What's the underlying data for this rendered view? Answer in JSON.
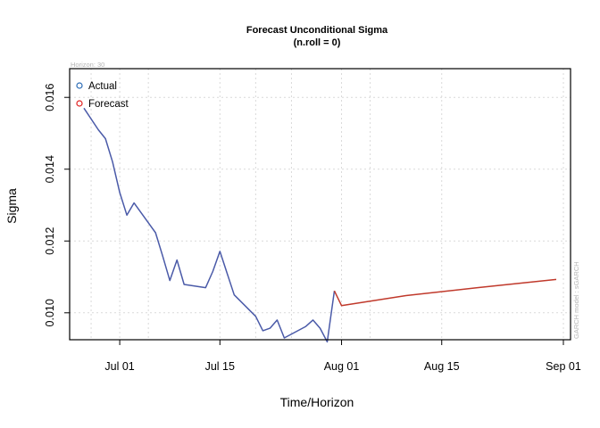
{
  "chart_data": {
    "type": "line",
    "title": "Forecast Unconditional Sigma",
    "subtitle": "(n.roll = 0)",
    "xlabel": "Time/Horizon",
    "ylabel": "Sigma",
    "horizon_note": "Horizon: 30",
    "watermark": "GARCH model : sGARCH",
    "xlim": [
      "2023-06-24",
      "2023-09-02"
    ],
    "ylim": [
      0.00925,
      0.0168
    ],
    "x_ticks": [
      {
        "date": "2023-07-01",
        "label": "Jul 01"
      },
      {
        "date": "2023-07-15",
        "label": "Jul 15"
      },
      {
        "date": "2023-08-01",
        "label": "Aug 01"
      },
      {
        "date": "2023-08-15",
        "label": "Aug 15"
      },
      {
        "date": "2023-09-01",
        "label": "Sep 01"
      }
    ],
    "y_ticks": [
      {
        "value": 0.01,
        "label": "0.010"
      },
      {
        "value": 0.012,
        "label": "0.012"
      },
      {
        "value": 0.014,
        "label": "0.014"
      },
      {
        "value": 0.016,
        "label": "0.016"
      }
    ],
    "x_minor_grid_dates": [
      "2023-06-27",
      "2023-07-05",
      "2023-07-20",
      "2023-07-25",
      "2023-08-05"
    ],
    "grid": true,
    "legend_position": "top-left",
    "series": [
      {
        "name": "Actual",
        "color": "#4a5aa8",
        "legend_color": "#2a6bb5",
        "points": [
          {
            "x": "2023-06-26",
            "y": 0.0157
          },
          {
            "x": "2023-06-28",
            "y": 0.0151
          },
          {
            "x": "2023-06-29",
            "y": 0.01485
          },
          {
            "x": "2023-06-30",
            "y": 0.0142
          },
          {
            "x": "2023-07-01",
            "y": 0.01335
          },
          {
            "x": "2023-07-02",
            "y": 0.01272
          },
          {
            "x": "2023-07-03",
            "y": 0.01306
          },
          {
            "x": "2023-07-06",
            "y": 0.01223
          },
          {
            "x": "2023-07-07",
            "y": 0.01158
          },
          {
            "x": "2023-07-08",
            "y": 0.0109
          },
          {
            "x": "2023-07-09",
            "y": 0.01147
          },
          {
            "x": "2023-07-10",
            "y": 0.01079
          },
          {
            "x": "2023-07-13",
            "y": 0.0107
          },
          {
            "x": "2023-07-14",
            "y": 0.01115
          },
          {
            "x": "2023-07-15",
            "y": 0.01171
          },
          {
            "x": "2023-07-17",
            "y": 0.0105
          },
          {
            "x": "2023-07-20",
            "y": 0.0099
          },
          {
            "x": "2023-07-21",
            "y": 0.0095
          },
          {
            "x": "2023-07-22",
            "y": 0.00957
          },
          {
            "x": "2023-07-23",
            "y": 0.0098
          },
          {
            "x": "2023-07-24",
            "y": 0.0093
          },
          {
            "x": "2023-07-27",
            "y": 0.00962
          },
          {
            "x": "2023-07-28",
            "y": 0.0098
          },
          {
            "x": "2023-07-29",
            "y": 0.00957
          },
          {
            "x": "2023-07-30",
            "y": 0.00919
          },
          {
            "x": "2023-07-31",
            "y": 0.01061
          }
        ]
      },
      {
        "name": "Forecast",
        "color": "#c0392b",
        "legend_color": "#e02020",
        "points": [
          {
            "x": "2023-07-31",
            "y": 0.01061
          },
          {
            "x": "2023-08-01",
            "y": 0.0102
          },
          {
            "x": "2023-08-10",
            "y": 0.01048
          },
          {
            "x": "2023-08-20",
            "y": 0.0107
          },
          {
            "x": "2023-08-31",
            "y": 0.01093
          }
        ]
      }
    ]
  }
}
